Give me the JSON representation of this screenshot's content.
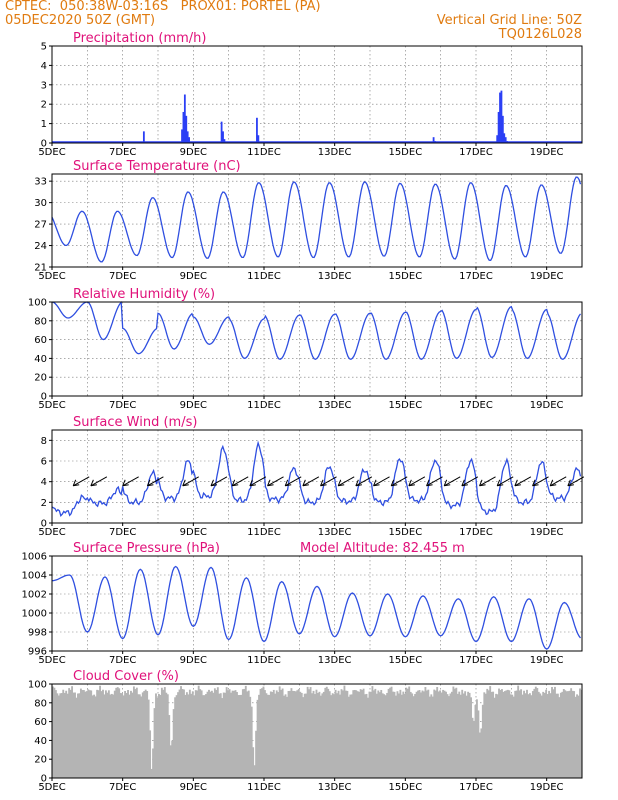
{
  "header": {
    "line1": "CPTEC:  050:38W-03:16S   PROX01: PORTEL (PA)",
    "line2_left": "05DEC2020 50Z (GMT)",
    "line2_right": "Vertical Grid Line: 50Z",
    "line3_right": "TQ0126L028",
    "model_altitude": "Model Altitude: 82.455 m"
  },
  "colors": {
    "header": "#e07b10",
    "title": "#e0117a",
    "line": "#2f4fe0",
    "bar": "#2b3ff5",
    "cloud": "#b4b4b4",
    "arrow": "#000000"
  },
  "chart_data": [
    {
      "type": "bar",
      "title": "Precipitation (mm/h)",
      "ylim": [
        0,
        5
      ],
      "yticks": [
        0,
        1,
        2,
        3,
        4,
        5
      ],
      "x_tick_labels": [
        "5DEC",
        "7DEC",
        "9DEC",
        "11DEC",
        "13DEC",
        "15DEC",
        "17DEC",
        "19DEC"
      ],
      "x_day_range": [
        5,
        20
      ],
      "x": [
        7.6,
        8.68,
        8.72,
        8.76,
        8.8,
        8.84,
        8.88,
        9.8,
        9.84,
        9.88,
        10.8,
        10.84,
        15.8,
        15.84,
        17.6,
        17.64,
        17.68,
        17.72,
        17.76,
        17.8,
        17.84,
        17.88
      ],
      "values": [
        0.6,
        0.7,
        1.6,
        2.5,
        1.4,
        0.6,
        0.3,
        1.1,
        0.6,
        0.2,
        1.3,
        0.4,
        0.3,
        0.1,
        0.4,
        1.6,
        2.6,
        2.7,
        1.4,
        0.5,
        0.3,
        0.1
      ]
    },
    {
      "type": "line",
      "title": "Surface Temperature (nC)",
      "ylim": [
        21,
        34
      ],
      "yticks": [
        21,
        24,
        27,
        30,
        33
      ],
      "x_tick_labels": [
        "5DEC",
        "7DEC",
        "9DEC",
        "11DEC",
        "13DEC",
        "15DEC",
        "17DEC",
        "19DEC"
      ],
      "x_day_range": [
        5,
        20
      ],
      "max": [
        null,
        28.8,
        30.7,
        31.5,
        31.5,
        32.8,
        32.9,
        32.8,
        32.9,
        32.7,
        32.6,
        32.8,
        32.4,
        32.5,
        33.6,
        33.6
      ],
      "min": [
        24,
        21.7,
        22.6,
        22.3,
        22.2,
        22.3,
        22.4,
        22.3,
        22.4,
        22.5,
        22.4,
        22.1,
        21.9,
        22.4,
        22.9,
        22.6
      ]
    },
    {
      "type": "line",
      "title": "Relative Humidity (%)",
      "ylim": [
        0,
        100
      ],
      "yticks": [
        0,
        20,
        40,
        60,
        80,
        100
      ],
      "x_tick_labels": [
        "5DEC",
        "7DEC",
        "9DEC",
        "11DEC",
        "13DEC",
        "15DEC",
        "17DEC",
        "19DEC"
      ],
      "x_day_range": [
        5,
        20
      ],
      "max": [
        100,
        100,
        72,
        88,
        84,
        82,
        86,
        87,
        88,
        89,
        90,
        92,
        95,
        92,
        88,
        88
      ],
      "min": [
        83,
        60,
        45,
        50,
        55,
        40,
        39,
        39,
        39,
        39,
        39,
        40,
        41,
        40,
        39,
        40
      ]
    },
    {
      "type": "line",
      "title": "Surface Wind (m/s)",
      "ylim": [
        0,
        9
      ],
      "yticks": [
        0,
        2,
        4,
        6,
        8
      ],
      "x_tick_labels": [
        "5DEC",
        "7DEC",
        "9DEC",
        "11DEC",
        "13DEC",
        "15DEC",
        "17DEC",
        "19DEC"
      ],
      "x_day_range": [
        5,
        20
      ],
      "max": [
        2.5,
        3.2,
        4.8,
        6.0,
        7.2,
        7.5,
        5.3,
        5.5,
        5.2,
        6.3,
        6.1,
        6.1,
        6.0,
        5.9,
        5.2,
        7.0
      ],
      "min": [
        1.0,
        1.9,
        2.0,
        2.4,
        2.6,
        2.2,
        2.3,
        2.0,
        2.1,
        2.0,
        2.2,
        1.7,
        1.1,
        2.0,
        2.4,
        3.0
      ],
      "wind_arrow_days": [
        5.6,
        6.1,
        7.0,
        7.7,
        8.7,
        9.5,
        10.1,
        10.6,
        11.1,
        11.6,
        12.1,
        12.6,
        13.1,
        13.6,
        14.1,
        14.6,
        15.1,
        15.6,
        16.1,
        16.6,
        17.1,
        17.6,
        18.1,
        18.6,
        19.1,
        19.6
      ]
    },
    {
      "type": "line",
      "title": "Surface Pressure (hPa)",
      "ylim": [
        996,
        1006
      ],
      "yticks": [
        996,
        998,
        1000,
        1002,
        1004,
        1006
      ],
      "x_tick_labels": [
        "5DEC",
        "7DEC",
        "9DEC",
        "11DEC",
        "13DEC",
        "15DEC",
        "17DEC",
        "19DEC"
      ],
      "x_day_range": [
        5,
        20
      ],
      "hourly_pressure_pattern": [
        1003.4,
        1004.0,
        998.0,
        1003.8,
        997.3,
        1004.6,
        997.7,
        1004.9,
        998.6,
        1004.8,
        997.2,
        1003.7,
        997.0,
        1003.3,
        997.8,
        1002.8,
        997.5,
        1002.1,
        997.6,
        1002.0,
        997.5,
        1001.8,
        997.6,
        1001.5,
        997.0,
        1001.7,
        997.0,
        1001.5,
        996.2,
        1001.1,
        997.3
      ]
    },
    {
      "type": "area",
      "title": "Cloud Cover (%)",
      "ylim": [
        0,
        100
      ],
      "yticks": [
        0,
        20,
        40,
        60,
        80,
        100
      ],
      "x_tick_labels": [
        "5DEC",
        "7DEC",
        "9DEC",
        "11DEC",
        "13DEC",
        "15DEC",
        "17DEC",
        "19DEC"
      ],
      "x_day_range": [
        5,
        20
      ],
      "base_level": 92,
      "dips": [
        {
          "day": 7.8,
          "value": 8
        },
        {
          "day": 8.35,
          "value": 30
        },
        {
          "day": 10.7,
          "value": 12
        },
        {
          "day": 16.9,
          "value": 58
        },
        {
          "day": 17.1,
          "value": 45
        }
      ]
    }
  ]
}
